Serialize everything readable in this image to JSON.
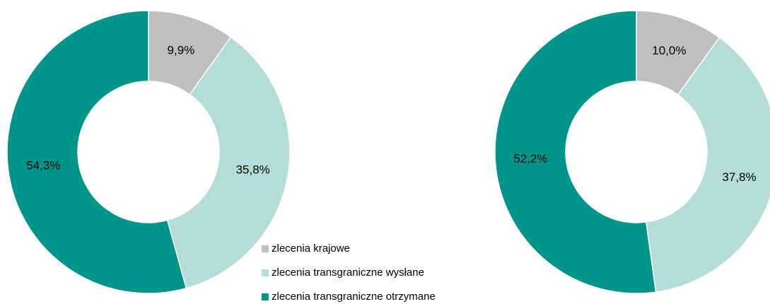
{
  "chart_data": [
    {
      "type": "pie",
      "categories": [
        "zlecenia krajowe",
        "zlecenia transgraniczne wysłane",
        "zlecenia transgraniczne otrzymane"
      ],
      "values": [
        9.9,
        35.8,
        54.3
      ],
      "value_labels": [
        "9,9%",
        "35,8%",
        "54,3%"
      ],
      "colors": [
        "#bfbfbf",
        "#b3ddd6",
        "#00958a"
      ]
    },
    {
      "type": "pie",
      "values": [
        10.0,
        37.8,
        52.2
      ],
      "value_labels": [
        "10,0%",
        "37,8%",
        "52,2%"
      ],
      "colors": [
        "#bfbfbf",
        "#b3ddd6",
        "#00958a"
      ]
    }
  ]
}
